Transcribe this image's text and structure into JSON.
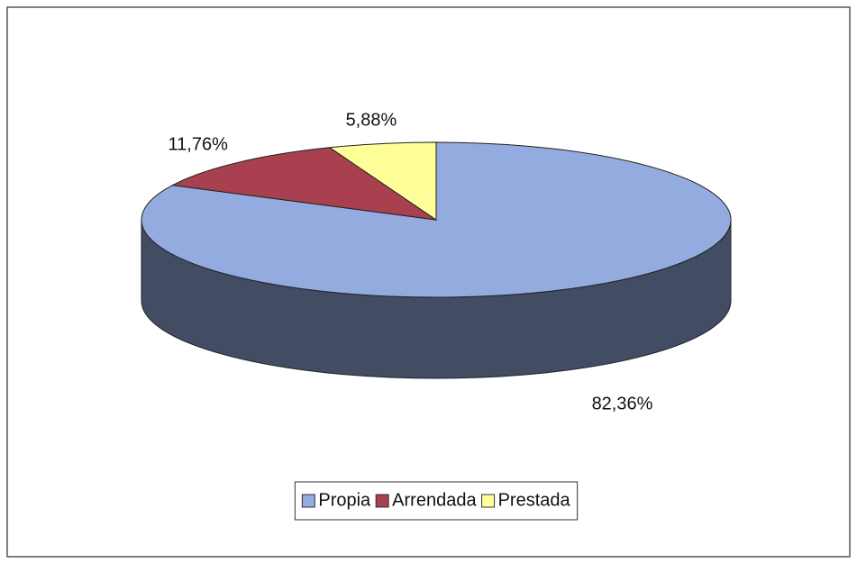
{
  "chart_data": {
    "type": "pie3d",
    "categories": [
      "Propia",
      "Arrendada",
      "Prestada"
    ],
    "values": [
      82.36,
      11.76,
      5.88
    ],
    "value_labels": [
      "82,36%",
      "11,76%",
      "5,88%"
    ],
    "colors": [
      "#93abdf",
      "#a8404f",
      "#ffff99"
    ],
    "legend": "bottom"
  }
}
